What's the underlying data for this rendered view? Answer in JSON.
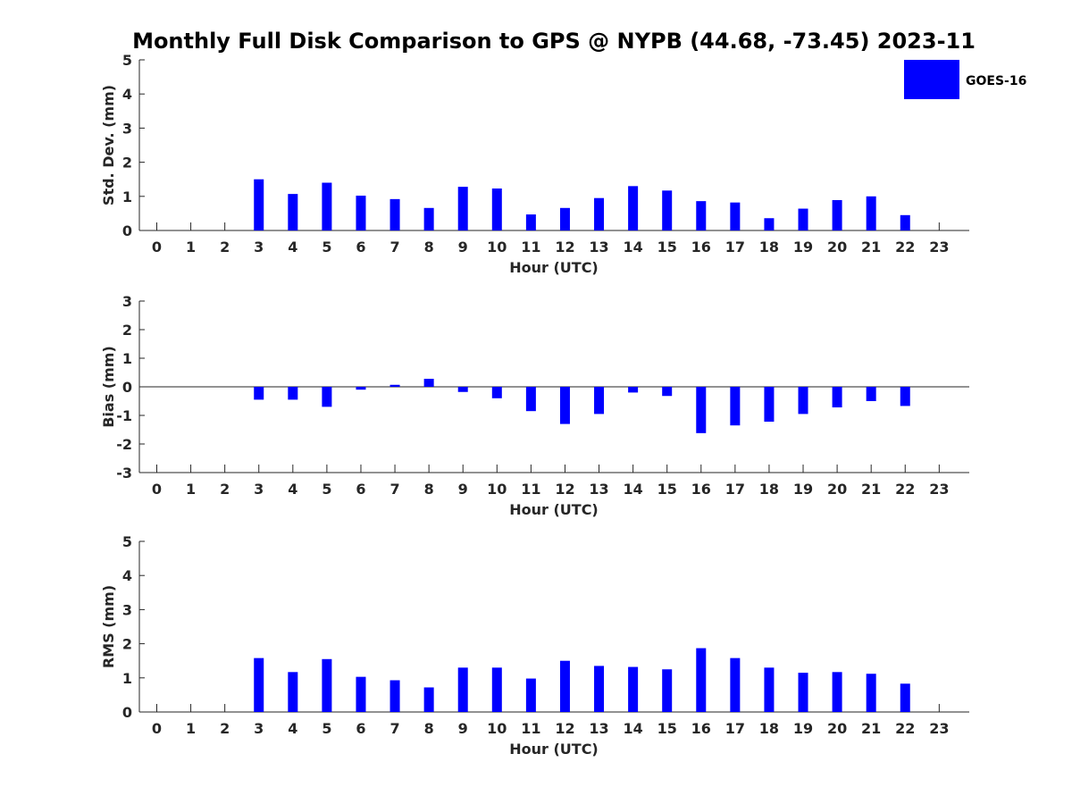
{
  "title": "Monthly Full Disk Comparison to GPS @ NYPB (44.68, -73.45) 2023-11",
  "bar_color": "#0000ff",
  "legend": {
    "label": "GOES-16",
    "color": "#0000ff"
  },
  "chart_data": [
    {
      "type": "bar",
      "name": "std-dev",
      "xlabel": "Hour (UTC)",
      "ylabel": "Std. Dev. (mm)",
      "ylim": [
        0,
        5
      ],
      "yticks": [
        0,
        1,
        2,
        3,
        4,
        5
      ],
      "zero_line": false,
      "categories": [
        "0",
        "1",
        "2",
        "3",
        "4",
        "5",
        "6",
        "7",
        "8",
        "9",
        "10",
        "11",
        "12",
        "13",
        "14",
        "15",
        "16",
        "17",
        "18",
        "19",
        "20",
        "21",
        "22",
        "23"
      ],
      "series": [
        {
          "name": "GOES-16",
          "values": [
            null,
            null,
            null,
            1.5,
            1.07,
            1.4,
            1.02,
            0.92,
            0.66,
            1.28,
            1.23,
            0.47,
            0.66,
            0.95,
            1.3,
            1.17,
            0.86,
            0.82,
            0.36,
            0.64,
            0.89,
            1.0,
            0.45,
            null
          ]
        }
      ]
    },
    {
      "type": "bar",
      "name": "bias",
      "xlabel": "Hour (UTC)",
      "ylabel": "Bias (mm)",
      "ylim": [
        -3,
        3
      ],
      "yticks": [
        -3,
        -2,
        -1,
        0,
        1,
        2,
        3
      ],
      "zero_line": true,
      "categories": [
        "0",
        "1",
        "2",
        "3",
        "4",
        "5",
        "6",
        "7",
        "8",
        "9",
        "10",
        "11",
        "12",
        "13",
        "14",
        "15",
        "16",
        "17",
        "18",
        "19",
        "20",
        "21",
        "22",
        "23"
      ],
      "series": [
        {
          "name": "GOES-16",
          "values": [
            null,
            null,
            null,
            -0.45,
            -0.45,
            -0.7,
            -0.1,
            0.07,
            0.28,
            -0.18,
            -0.4,
            -0.85,
            -1.3,
            -0.95,
            -0.2,
            -0.32,
            -1.62,
            -1.35,
            -1.22,
            -0.95,
            -0.72,
            -0.5,
            -0.67,
            null
          ]
        }
      ]
    },
    {
      "type": "bar",
      "name": "rms",
      "xlabel": "Hour (UTC)",
      "ylabel": "RMS (mm)",
      "ylim": [
        0,
        5
      ],
      "yticks": [
        0,
        1,
        2,
        3,
        4,
        5
      ],
      "zero_line": false,
      "categories": [
        "0",
        "1",
        "2",
        "3",
        "4",
        "5",
        "6",
        "7",
        "8",
        "9",
        "10",
        "11",
        "12",
        "13",
        "14",
        "15",
        "16",
        "17",
        "18",
        "19",
        "20",
        "21",
        "22",
        "23"
      ],
      "series": [
        {
          "name": "GOES-16",
          "values": [
            null,
            null,
            null,
            1.58,
            1.17,
            1.55,
            1.03,
            0.93,
            0.72,
            1.3,
            1.3,
            0.98,
            1.5,
            1.35,
            1.32,
            1.25,
            1.87,
            1.58,
            1.3,
            1.15,
            1.17,
            1.12,
            0.83,
            null
          ]
        }
      ]
    }
  ]
}
